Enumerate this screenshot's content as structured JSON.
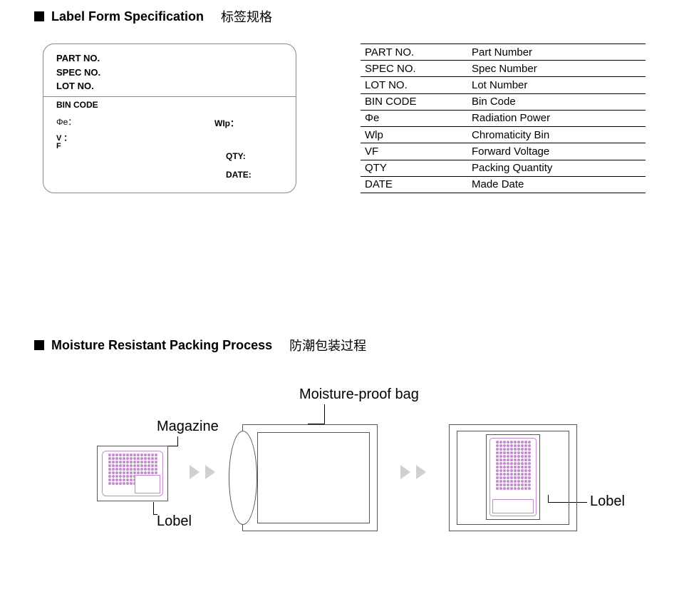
{
  "section1": {
    "title_en": "Label Form Specification",
    "title_cn": "标签规格"
  },
  "label_card": {
    "part_no": "PART NO.",
    "spec_no": "SPEC NO.",
    "lot_no": "LOT NO.",
    "bin_code": "BIN CODE",
    "phi_e": "Φe：",
    "wlp": "WIp：",
    "vf1": "V ：",
    "vf2": "F",
    "qty": "QTY:",
    "date": "DATE:"
  },
  "defs": {
    "rows": [
      {
        "k": "PART NO.",
        "v": "Part Number"
      },
      {
        "k": "SPEC NO.",
        "v": "Spec Number"
      },
      {
        "k": "LOT NO.",
        "v": "Lot Number"
      },
      {
        "k": "BIN CODE",
        "v": "Bin Code"
      },
      {
        "k": "Φe",
        "v": "Radiation Power"
      },
      {
        "k": "Wlp",
        "v": "Chromaticity Bin"
      },
      {
        "k": "VF",
        "v": "Forward Voltage"
      },
      {
        "k": "QTY",
        "v": "Packing Quantity"
      },
      {
        "k": "DATE",
        "v": "Made Date"
      }
    ]
  },
  "section2": {
    "title_en": "Moisture Resistant Packing Process",
    "title_cn": "防潮包装过程"
  },
  "process": {
    "magazine_label": "Magazine",
    "bag_label": "Moisture-proof bag",
    "lobel1": "Lobel",
    "lobel2": "Lobel"
  },
  "style": {
    "dot_color": "#c58bd0",
    "border_color": "#888888",
    "text_color": "#000000",
    "arrow_color": "#d0d0d0",
    "mag_dots": {
      "cols": 14,
      "rows": 9,
      "dot_size": 4
    },
    "final_dots": {
      "cols": 10,
      "rows": 14,
      "dot_size": 4
    }
  }
}
